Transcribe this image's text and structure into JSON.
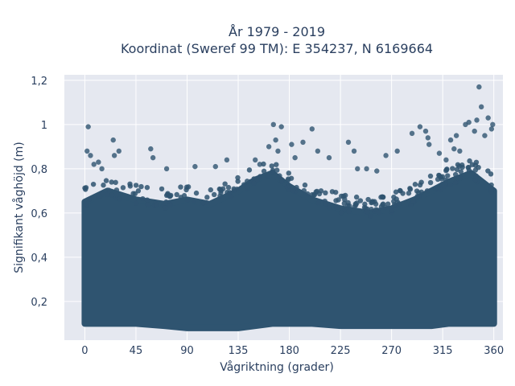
{
  "chart_data": {
    "type": "scatter",
    "title_lines": [
      "År 1979 - 2019",
      "Koordinat (Sweref 99 TM): E 354237, N 6169664"
    ],
    "xlabel": "Vågriktning (grader)",
    "ylabel": "Signifikant våghöjd (m)",
    "xlim": [
      -18,
      368
    ],
    "ylim": [
      0.025,
      1.225
    ],
    "x_ticks": [
      0,
      45,
      90,
      135,
      180,
      225,
      270,
      315,
      360
    ],
    "x_tick_labels": [
      "0",
      "45",
      "90",
      "135",
      "180",
      "225",
      "270",
      "315",
      "360"
    ],
    "y_ticks": [
      0.2,
      0.4,
      0.6,
      0.8,
      1.0,
      1.2
    ],
    "y_tick_labels": [
      "0,2",
      "0,4",
      "0,6",
      "0,8",
      "1",
      "1,2"
    ],
    "grid": true,
    "marker_color": "#2f5470",
    "background_color": "#e5e8f0",
    "dense_envelope": [
      {
        "x": 0,
        "low": 0.1,
        "high": 0.65
      },
      {
        "x": 20,
        "low": 0.1,
        "high": 0.7
      },
      {
        "x": 45,
        "low": 0.1,
        "high": 0.66
      },
      {
        "x": 70,
        "low": 0.09,
        "high": 0.64
      },
      {
        "x": 90,
        "low": 0.08,
        "high": 0.66
      },
      {
        "x": 110,
        "low": 0.08,
        "high": 0.64
      },
      {
        "x": 135,
        "low": 0.08,
        "high": 0.7
      },
      {
        "x": 150,
        "low": 0.09,
        "high": 0.75
      },
      {
        "x": 165,
        "low": 0.1,
        "high": 0.78
      },
      {
        "x": 180,
        "low": 0.1,
        "high": 0.72
      },
      {
        "x": 200,
        "low": 0.1,
        "high": 0.66
      },
      {
        "x": 225,
        "low": 0.09,
        "high": 0.62
      },
      {
        "x": 250,
        "low": 0.09,
        "high": 0.6
      },
      {
        "x": 270,
        "low": 0.09,
        "high": 0.62
      },
      {
        "x": 290,
        "low": 0.09,
        "high": 0.66
      },
      {
        "x": 305,
        "low": 0.09,
        "high": 0.7
      },
      {
        "x": 320,
        "low": 0.1,
        "high": 0.74
      },
      {
        "x": 340,
        "low": 0.1,
        "high": 0.78
      },
      {
        "x": 360,
        "low": 0.1,
        "high": 0.7
      }
    ],
    "outliers": [
      {
        "x": 3,
        "y": 0.99
      },
      {
        "x": 2,
        "y": 0.88
      },
      {
        "x": 5,
        "y": 0.86
      },
      {
        "x": 12,
        "y": 0.83
      },
      {
        "x": 15,
        "y": 0.8
      },
      {
        "x": 25,
        "y": 0.93
      },
      {
        "x": 30,
        "y": 0.88
      },
      {
        "x": 26,
        "y": 0.86
      },
      {
        "x": 58,
        "y": 0.89
      },
      {
        "x": 60,
        "y": 0.85
      },
      {
        "x": 97,
        "y": 0.81
      },
      {
        "x": 115,
        "y": 0.81
      },
      {
        "x": 125,
        "y": 0.84
      },
      {
        "x": 162,
        "y": 0.9
      },
      {
        "x": 166,
        "y": 1.0
      },
      {
        "x": 168,
        "y": 0.93
      },
      {
        "x": 173,
        "y": 0.99
      },
      {
        "x": 170,
        "y": 0.88
      },
      {
        "x": 182,
        "y": 0.91
      },
      {
        "x": 185,
        "y": 0.85
      },
      {
        "x": 192,
        "y": 0.92
      },
      {
        "x": 200,
        "y": 0.98
      },
      {
        "x": 205,
        "y": 0.88
      },
      {
        "x": 215,
        "y": 0.85
      },
      {
        "x": 232,
        "y": 0.92
      },
      {
        "x": 237,
        "y": 0.88
      },
      {
        "x": 240,
        "y": 0.8
      },
      {
        "x": 265,
        "y": 0.86
      },
      {
        "x": 275,
        "y": 0.88
      },
      {
        "x": 288,
        "y": 0.96
      },
      {
        "x": 295,
        "y": 0.99
      },
      {
        "x": 300,
        "y": 0.97
      },
      {
        "x": 302,
        "y": 0.94
      },
      {
        "x": 303,
        "y": 0.91
      },
      {
        "x": 322,
        "y": 0.93
      },
      {
        "x": 325,
        "y": 0.89
      },
      {
        "x": 327,
        "y": 0.95
      },
      {
        "x": 330,
        "y": 0.88
      },
      {
        "x": 335,
        "y": 1.0
      },
      {
        "x": 338,
        "y": 1.01
      },
      {
        "x": 343,
        "y": 0.97
      },
      {
        "x": 345,
        "y": 1.02
      },
      {
        "x": 347,
        "y": 1.17
      },
      {
        "x": 349,
        "y": 1.08
      },
      {
        "x": 352,
        "y": 0.95
      },
      {
        "x": 355,
        "y": 1.03
      },
      {
        "x": 358,
        "y": 0.98
      },
      {
        "x": 359,
        "y": 1.0
      },
      {
        "x": 312,
        "y": 0.87
      },
      {
        "x": 318,
        "y": 0.84
      },
      {
        "x": 150,
        "y": 0.84
      },
      {
        "x": 154,
        "y": 0.82
      },
      {
        "x": 72,
        "y": 0.8
      },
      {
        "x": 8,
        "y": 0.82
      },
      {
        "x": 248,
        "y": 0.8
      },
      {
        "x": 257,
        "y": 0.79
      }
    ]
  }
}
